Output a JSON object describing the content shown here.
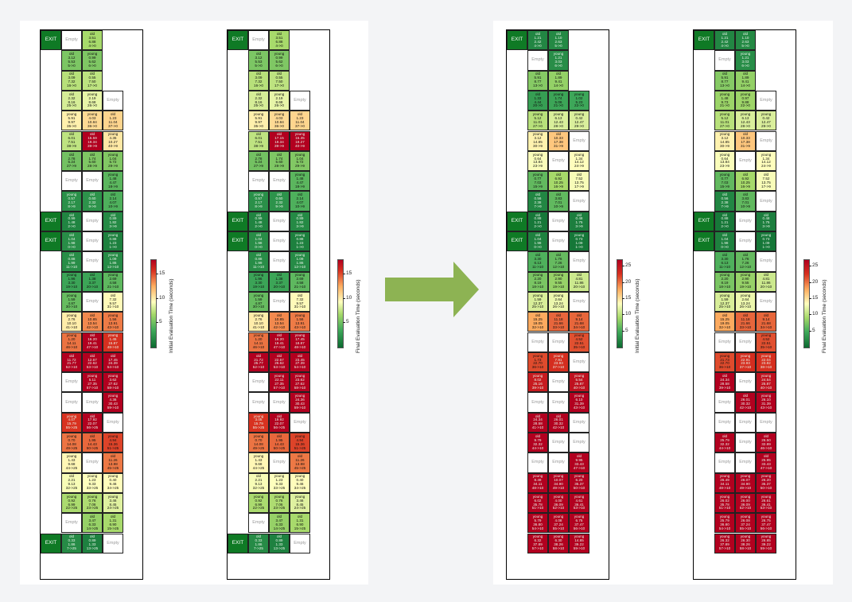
{
  "labels": {
    "exit": "EXIT",
    "empty": "Empty"
  },
  "colors": {
    "exit": "#0f7a25",
    "arrow": "#8db353",
    "panel": "#ffffff",
    "background": "#f3f4f6"
  },
  "colormaps": {
    "A": {
      "max": 18,
      "ticks": [
        5,
        10,
        15
      ]
    },
    "B": {
      "max": 27,
      "ticks": [
        5,
        10,
        15,
        20,
        25
      ]
    }
  },
  "panels": [
    {
      "id": "p1",
      "colorbar_label": "Initial Evaluation Time (seconds)",
      "cmap": "A"
    },
    {
      "id": "p2",
      "colorbar_label": "Final Evaluation Time (seconds)",
      "cmap": "A"
    },
    {
      "id": "p3",
      "colorbar_label": "Initial Evaluation Time (seconds)",
      "cmap": "B"
    },
    {
      "id": "p4",
      "colorbar_label": "Final Evaluation Time (seconds)",
      "cmap": "B"
    }
  ],
  "grids": {
    "p1": [
      [
        "EXIT",
        "Empty",
        "old|3.51|6.88|4->0"
      ],
      [
        "",
        "old|3.12|5.53|5->0",
        "young|0.99|5.62|6->0"
      ],
      [
        "",
        "old|3.09|7.32|16->0",
        "old|0.55|7.50|17->0"
      ],
      [
        "",
        "old|2.32|8.16|25->0",
        "young|2.19|8.68|26->0",
        "Empty"
      ],
      [
        "",
        "young|5.91|9.97|35->0",
        "young|4.03|10.84|36->0",
        "old|1.23|11.04|37->0"
      ],
      [
        "",
        "old|6.01|7.51|38->9",
        "old|15.59|19.34|39->9",
        "young|4.35|10.27|40->9"
      ],
      [
        "",
        "old|2.78|5.24|27->9",
        "old|1.74|5.60|28->9",
        "young|1.04|5.72|29->9"
      ],
      [
        "",
        "Empty",
        "Empty",
        "young|1.48|4.47|18->9"
      ],
      [
        "",
        "young|0.57|2.17|8->9",
        "old|0.60|2.32|9->9",
        "old|2.14|4.07|10->9"
      ],
      [
        "EXIT",
        "old|0.99|1.48|2->0",
        "Empty",
        "old|0.89|1.82|3->9"
      ],
      [
        "EXIT",
        "old|1.04|1.98|0->0",
        "Empty",
        "young|0.88|1.23|1->0"
      ],
      [
        "",
        "old|0.88|1.99|11->10",
        "Empty",
        "young|1.09|1.86|12->10"
      ],
      [
        "",
        "young|1.96|3.30|19->10",
        "old|1.38|3.37|20->10",
        "young|2.69|4.58|21->10"
      ],
      [
        "",
        "young|1.59|4.87|30->10",
        "Empty",
        "old|7.32|9.57|31->10"
      ],
      [
        "",
        "young|2.76|10.10|41->10",
        "old|10.85|13.54|42->10",
        "young|1.56|13.91|43->10"
      ],
      [
        "",
        "young|1.20|14.11|46->10",
        "old|16.20|19.41|47->10",
        "young|1.45|15.87|48->10"
      ],
      [
        "",
        "old|11.72|21.77|52->10",
        "old|12.67|22.62|53->10",
        "old|17.45|24.39|54->10"
      ],
      [
        "",
        "Empty",
        "young|5.11|27.35|57->10",
        "young|3.62|27.62|58->10"
      ],
      [
        "",
        "Empty",
        "Empty",
        "young|4.36|30.43|59->10"
      ],
      [
        "",
        "young|4.07|15.79|55->25",
        "old|17.92|22.07|56->25",
        "Empty"
      ],
      [
        "",
        "young|0.70|14.08|49->25",
        "old|1.95|14.43|50->25",
        "young|4.94|15.36|51->25"
      ],
      [
        "",
        "young|1.43|9.68|44->25",
        "Empty",
        "old|11.26|13.98|45->25"
      ],
      [
        "",
        "old|2.21|9.13|32->25",
        "young|1.23|9.33|33->25",
        "young|0.40|9.46|34->25"
      ],
      [
        "",
        "young|0.92|6.99|22->25",
        "young|0.76|7.06|23->25",
        "young|3.46|8.45|24->25"
      ],
      [
        "",
        "Empty",
        "old|3.47|6.33|14->25",
        "old|1.31|6.90|15->25"
      ],
      [
        "EXIT",
        "old|0.33|1.86|7->25",
        "old|0.89|1.33|13->25",
        "Empty"
      ]
    ],
    "p2": [
      [
        "EXIT",
        "Empty",
        "old|3.51|6.88|4->0"
      ],
      [
        "",
        "old|3.12|5.53|5->0",
        "young|0.99|5.62|6->0"
      ],
      [
        "",
        "old|3.09|7.32|16->0",
        "old|0.55|7.50|17->0"
      ],
      [
        "",
        "old|2.32|8.16|25->0",
        "young|2.19|8.68|26->0",
        "Empty"
      ],
      [
        "",
        "young|5.91|9.97|35->0",
        "young|4.03|10.84|36->0",
        "old|1.23|11.04|37->0"
      ],
      [
        "",
        "old|6.01|7.51|38->9",
        "old|17.15|19.34|39->9",
        "young|15.35|19.27|40->9"
      ],
      [
        "",
        "old|2.78|5.24|27->9",
        "old|1.74|5.60|28->9",
        "young|1.04|5.72|29->9"
      ],
      [
        "",
        "Empty",
        "Empty",
        "young|1.48|4.47|18->9"
      ],
      [
        "",
        "young|0.57|2.17|8->9",
        "old|0.60|2.32|9->9",
        "old|2.14|4.07|10->9"
      ],
      [
        "EXIT",
        "old|0.99|1.48|2->0",
        "Empty",
        "old|0.89|1.82|3->9"
      ],
      [
        "EXIT",
        "old|1.04|1.98|0->0",
        "Empty",
        "young|0.88|1.23|1->0"
      ],
      [
        "",
        "old|0.88|1.99|11->10",
        "Empty",
        "young|1.09|1.86|12->10"
      ],
      [
        "",
        "young|1.96|3.30|19->10",
        "old|1.38|3.37|20->10",
        "young|2.69|4.58|21->10"
      ],
      [
        "",
        "young|1.59|4.87|30->10",
        "Empty",
        "old|7.32|9.57|31->10"
      ],
      [
        "",
        "young|2.76|10.10|41->10",
        "old|10.85|13.54|42->10",
        "young|1.56|13.91|43->10"
      ],
      [
        "",
        "young|1.20|14.11|46->10",
        "old|18.20|19.41|47->10",
        "young|17.45|18.87|48->10"
      ],
      [
        "",
        "old|21.72|25.77|52->10",
        "old|22.67|26.62|53->10",
        "old|23.45|27.39|54->10"
      ],
      [
        "",
        "Empty",
        "young|22.11|27.35|57->10",
        "young|23.62|27.62|58->10"
      ],
      [
        "",
        "Empty",
        "Empty",
        "young|24.36|30.43|59->10"
      ],
      [
        "",
        "young|3.05|15.79|55->25",
        "old|19.92|22.07|56->25",
        "Empty"
      ],
      [
        "",
        "young|0.70|14.08|49->25",
        "old|1.95|14.43|50->25",
        "young|4.94|15.36|51->25"
      ],
      [
        "",
        "young|1.43|9.68|44->25",
        "Empty",
        "old|11.26|13.98|45->25"
      ],
      [
        "",
        "old|2.21|9.13|32->25",
        "young|1.23|9.33|33->25",
        "young|0.40|9.46|34->25"
      ],
      [
        "",
        "young|0.92|6.99|22->25",
        "young|0.76|7.06|23->25",
        "young|3.46|8.45|24->25"
      ],
      [
        "",
        "Empty",
        "old|3.47|6.33|14->25",
        "old|1.31|6.90|15->25"
      ],
      [
        "EXIT",
        "old|0.33|1.86|7->25",
        "old|0.89|1.33|13->25",
        "Empty"
      ]
    ],
    "p3": [
      [
        "EXIT",
        "old|1.21|2.42|4->0",
        "old|1.10|2.63|5->0"
      ],
      [
        "",
        "Empty",
        "young|1.21|3.03|6->0"
      ],
      [
        "",
        "old|5.91|8.77|13->0",
        "old|1.89|9.41|14->0"
      ],
      [
        "",
        "old|1.33|4.44|20->0",
        "young|1.74|5.06|21->0",
        "young|1.02|5.23|22->0"
      ],
      [
        "",
        "young|5.12|11.01|27->0",
        "young|6.13|12.43|28->0",
        "young|0.42|12.47|29->0"
      ],
      [
        "",
        "young|3.12|14.85|30->9",
        "old|10.33|17.38|31->9",
        "Empty"
      ],
      [
        "",
        "young|0.64|13.84|23->9",
        "Empty",
        "young|1.34|14.12|24->9"
      ],
      [
        "",
        "young|0.77|7.03|15->9",
        "old|6.92|10.25|16->9",
        "old|7.52|13.75|17->9"
      ],
      [
        "",
        "old|0.56|2.38|7->9",
        "old|3.83|7.01|10->9",
        "Empty"
      ],
      [
        "EXIT",
        "old|0.88|1.21|2->0",
        "Empty",
        "old|0.48|1.75|3->9"
      ],
      [
        "EXIT",
        "old|1.04|1.98|0->0",
        "Empty",
        "young|0.73|1.09|1->0"
      ],
      [
        "",
        "old|3.30|6.13|11->10",
        "old|1.76|7.26|12->10",
        "Empty"
      ],
      [
        "",
        "young|2.20|8.19|18->10",
        "young|2.90|9.55|19->10",
        "old|4.81|11.86|20->10"
      ],
      [
        "",
        "young|1.59|12.37|25->10",
        "young|2.64|13.24|26->10",
        "Empty"
      ],
      [
        "",
        "old|15.25|19.05|32->10",
        "old|11.18|21.66|33->10",
        "old|9.14|21.68|34->10"
      ],
      [
        "",
        "Empty",
        "Empty",
        "young|4.52|22.51|35->10"
      ],
      [
        "",
        "young|1.73|22.70|36->10",
        "young|7.91|23.93|37->10",
        "Empty"
      ],
      [
        "",
        "young|8.02|25.16|39->10",
        "Empty",
        "young|5.54|25.87|40->10"
      ],
      [
        "",
        "Empty",
        "Empty",
        "young|6.10|31.39|43->10"
      ],
      [
        "",
        "old|24.34|28.58|41->10",
        "old|26.01|30.32|42->10",
        "Empty"
      ],
      [
        "",
        "old|9.79|32.32|44->10",
        "Empty",
        "Empty"
      ],
      [
        "",
        "Empty",
        "Empty",
        "old|9.95|33.43|47->10"
      ],
      [
        "",
        "young|8.49|34.11|48->10",
        "young|10.07|34.90|49->10",
        "young|6.20|35.37|50->10"
      ],
      [
        "",
        "young|6.02|35.78|51->10",
        "young|4.00|36.09|52->10",
        "young|4.61|36.41|53->10"
      ],
      [
        "",
        "young|5.79|36.80|54->10",
        "young|4.08|37.24|55->10",
        "young|6.75|37.47|56->10"
      ],
      [
        "",
        "young|6.32|37.89|57->10",
        "young|6.30|38.26|58->10",
        "young|14.85|39.22|59->10"
      ]
    ],
    "p4": [
      [
        "EXIT",
        "old|1.21|2.42|4->0",
        "old|1.10|2.63|5->0"
      ],
      [
        "",
        "Empty",
        "young|1.21|3.03|6->0"
      ],
      [
        "",
        "old|5.91|8.77|13->0",
        "old|1.89|9.41|14->0"
      ],
      [
        "",
        "young|1.48|9.73|21->0",
        "young|0.97|9.88|22->0",
        "Empty"
      ],
      [
        "",
        "young|5.12|11.01|27->0",
        "young|6.13|12.43|28->0",
        "young|0.42|12.47|29->0"
      ],
      [
        "",
        "young|3.12|14.85|30->9",
        "old|10.33|17.38|31->9",
        "Empty"
      ],
      [
        "",
        "young|0.64|13.84|23->9",
        "Empty",
        "young|1.34|14.12|24->9"
      ],
      [
        "",
        "young|0.77|7.03|15->9",
        "old|6.92|10.25|16->9",
        "old|7.52|13.75|17->9"
      ],
      [
        "",
        "old|0.56|2.38|7->9",
        "old|3.83|7.01|10->9",
        "Empty"
      ],
      [
        "EXIT",
        "old|0.88|1.21|2->0",
        "Empty",
        "old|0.48|1.75|3->9"
      ],
      [
        "EXIT",
        "old|1.04|1.98|0->0",
        "Empty",
        "young|0.73|1.09|1->0"
      ],
      [
        "",
        "old|3.30|6.13|11->10",
        "old|1.76|7.26|12->10",
        "Empty"
      ],
      [
        "",
        "young|2.20|8.19|18->10",
        "young|2.90|9.55|19->10",
        "old|4.81|11.86|20->10"
      ],
      [
        "",
        "young|1.59|12.37|25->10",
        "young|2.64|13.24|26->10",
        "Empty"
      ],
      [
        "",
        "old|15.25|19.05|32->10",
        "old|11.18|21.66|33->10",
        "old|9.14|21.68|34->10"
      ],
      [
        "",
        "Empty",
        "Empty",
        "young|4.52|22.51|35->10"
      ],
      [
        "",
        "young|21.73|22.70|36->10",
        "young|22.91|23.93|37->10",
        "young|22.04|23.82|38->10"
      ],
      [
        "",
        "old|24.34|28.58|39->10",
        "Empty",
        "young|24.54|25.87|40->10"
      ],
      [
        "",
        "Empty",
        "old|26.01|30.32|42->10",
        "young|26.10|31.39|43->10"
      ],
      [
        "",
        "Empty",
        "Empty",
        "Empty"
      ],
      [
        "",
        "old|25.79|32.32|44->10",
        "Empty",
        "old|26.50|32.89|46->10"
      ],
      [
        "",
        "Empty",
        "Empty",
        "old|25.95|33.43|47->10"
      ],
      [
        "",
        "young|26.49|34.11|48->10",
        "young|26.07|34.90|49->10",
        "young|26.20|35.37|50->10"
      ],
      [
        "",
        "young|26.02|35.78|51->10",
        "young|26.00|36.09|52->10",
        "young|26.61|36.41|53->10"
      ],
      [
        "",
        "young|25.79|36.80|54->10",
        "young|26.08|37.24|55->10",
        "young|26.75|37.47|56->10"
      ],
      [
        "",
        "young|26.32|37.89|57->10",
        "young|26.30|38.26|58->10",
        "young|26.85|39.22|59->10"
      ]
    ]
  }
}
